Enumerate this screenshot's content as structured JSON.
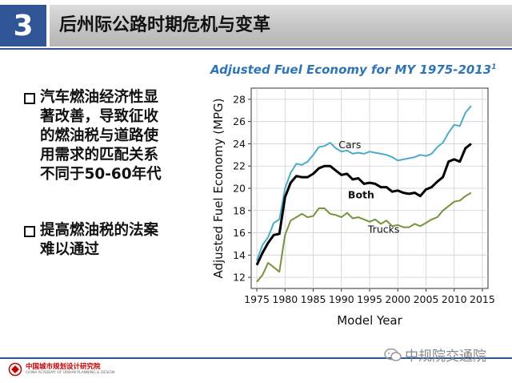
{
  "slide": {
    "number": "3",
    "title": "后州际公路时期危机与变革"
  },
  "bullets": [
    {
      "lines": [
        "汽车燃油经济性显",
        "著改善，导致征收",
        "的燃油税与道路使",
        "用需求的匹配关系",
        "不同于50-60年代"
      ]
    },
    {
      "lines": [
        "提高燃油税的法案",
        "难以通过"
      ]
    }
  ],
  "footer": {
    "logo_cn": "中国城市规划设计研究院",
    "logo_en": "CHINA ACADEMY OF URBAN PLANNING & DESIGN",
    "watermark": "中规院交通院"
  },
  "colors": {
    "accent": "#2f5597",
    "cars": "#4bacc6",
    "both": "#000000",
    "trucks": "#77933c"
  },
  "chart_data": {
    "type": "line",
    "title": "Adjusted Fuel Economy for MY 1975-2013",
    "title_superscript": "1",
    "xlabel": "Model Year",
    "ylabel": "Adjusted Fuel Economy (MPG)",
    "xlim": [
      1974,
      2016
    ],
    "ylim": [
      11,
      29
    ],
    "x_ticks": [
      1975,
      1980,
      1985,
      1990,
      1995,
      2000,
      2005,
      2010,
      2015
    ],
    "y_ticks": [
      12,
      14,
      16,
      18,
      20,
      22,
      24,
      26,
      28
    ],
    "grid": true,
    "x": [
      1975,
      1976,
      1977,
      1978,
      1979,
      1980,
      1981,
      1982,
      1983,
      1984,
      1985,
      1986,
      1987,
      1988,
      1989,
      1990,
      1991,
      1992,
      1993,
      1994,
      1995,
      1996,
      1997,
      1998,
      1999,
      2000,
      2001,
      2002,
      2003,
      2004,
      2005,
      2006,
      2007,
      2008,
      2009,
      2010,
      2011,
      2012,
      2013
    ],
    "series": [
      {
        "name": "Cars",
        "values": [
          13.5,
          14.9,
          15.6,
          16.9,
          17.2,
          20.0,
          21.4,
          22.2,
          22.1,
          22.4,
          23.0,
          23.7,
          23.8,
          24.1,
          23.6,
          23.3,
          23.4,
          23.1,
          23.2,
          23.1,
          23.3,
          23.2,
          23.1,
          23.0,
          22.8,
          22.5,
          22.6,
          22.7,
          22.8,
          23.0,
          22.9,
          23.1,
          23.7,
          24.1,
          25.0,
          25.7,
          25.6,
          26.8,
          27.4
        ]
      },
      {
        "name": "Both",
        "values": [
          13.1,
          14.2,
          15.1,
          15.8,
          15.9,
          19.2,
          20.5,
          21.1,
          21.0,
          21.0,
          21.3,
          21.8,
          22.0,
          22.0,
          21.6,
          21.2,
          21.3,
          20.8,
          20.9,
          20.4,
          20.5,
          20.4,
          20.1,
          20.1,
          19.7,
          19.8,
          19.6,
          19.5,
          19.6,
          19.3,
          19.9,
          20.1,
          20.6,
          21.0,
          22.4,
          22.6,
          22.4,
          23.6,
          24.0
        ]
      },
      {
        "name": "Trucks",
        "values": [
          11.6,
          12.2,
          13.3,
          12.9,
          12.5,
          15.8,
          17.1,
          17.4,
          17.7,
          17.4,
          17.5,
          18.2,
          18.2,
          17.7,
          17.6,
          17.4,
          17.8,
          17.3,
          17.4,
          17.2,
          17.0,
          17.2,
          16.8,
          17.1,
          16.6,
          16.7,
          16.5,
          16.5,
          16.8,
          16.6,
          16.9,
          17.2,
          17.4,
          18.0,
          18.4,
          18.8,
          18.9,
          19.3,
          19.6
        ]
      }
    ],
    "series_labels": [
      {
        "name": "Cars",
        "text": "Cars",
        "x": 1991.5,
        "y": 23.6
      },
      {
        "name": "Both",
        "text": "Both",
        "x": 1993.5,
        "y": 19.1
      },
      {
        "name": "Trucks",
        "text": "Trucks",
        "x": 1997.5,
        "y": 16.0
      }
    ]
  }
}
